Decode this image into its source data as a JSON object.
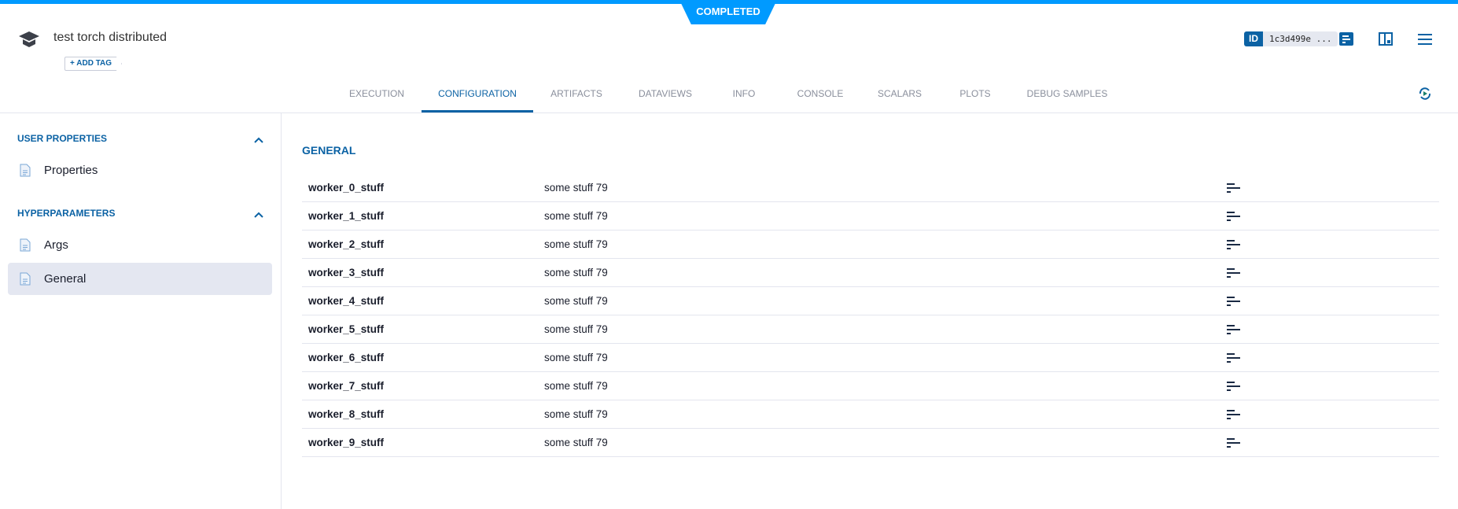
{
  "header": {
    "status": "COMPLETED",
    "title": "test torch distributed",
    "add_tag": "+ ADD TAG",
    "id_label": "ID",
    "id_value": "1c3d499e ..."
  },
  "tabs": [
    {
      "label": "EXECUTION"
    },
    {
      "label": "CONFIGURATION",
      "active": true
    },
    {
      "label": "ARTIFACTS"
    },
    {
      "label": "DATAVIEWS"
    },
    {
      "label": "INFO"
    },
    {
      "label": "CONSOLE"
    },
    {
      "label": "SCALARS"
    },
    {
      "label": "PLOTS"
    },
    {
      "label": "DEBUG SAMPLES"
    }
  ],
  "sidebar": {
    "user_properties": {
      "title": "USER PROPERTIES",
      "items": [
        {
          "label": "Properties"
        }
      ]
    },
    "hyperparameters": {
      "title": "HYPERPARAMETERS",
      "items": [
        {
          "label": "Args"
        },
        {
          "label": "General",
          "selected": true
        }
      ]
    }
  },
  "main": {
    "section_title": "GENERAL",
    "rows": [
      {
        "key": "worker_0_stuff",
        "value": "some stuff 79"
      },
      {
        "key": "worker_1_stuff",
        "value": "some stuff 79"
      },
      {
        "key": "worker_2_stuff",
        "value": "some stuff 79"
      },
      {
        "key": "worker_3_stuff",
        "value": "some stuff 79"
      },
      {
        "key": "worker_4_stuff",
        "value": "some stuff 79"
      },
      {
        "key": "worker_5_stuff",
        "value": "some stuff 79"
      },
      {
        "key": "worker_6_stuff",
        "value": "some stuff 79"
      },
      {
        "key": "worker_7_stuff",
        "value": "some stuff 79"
      },
      {
        "key": "worker_8_stuff",
        "value": "some stuff 79"
      },
      {
        "key": "worker_9_stuff",
        "value": "some stuff 79"
      }
    ]
  },
  "colors": {
    "accent": "#0b62a4",
    "status": "#009aff",
    "selected": "#e4e7f1"
  }
}
